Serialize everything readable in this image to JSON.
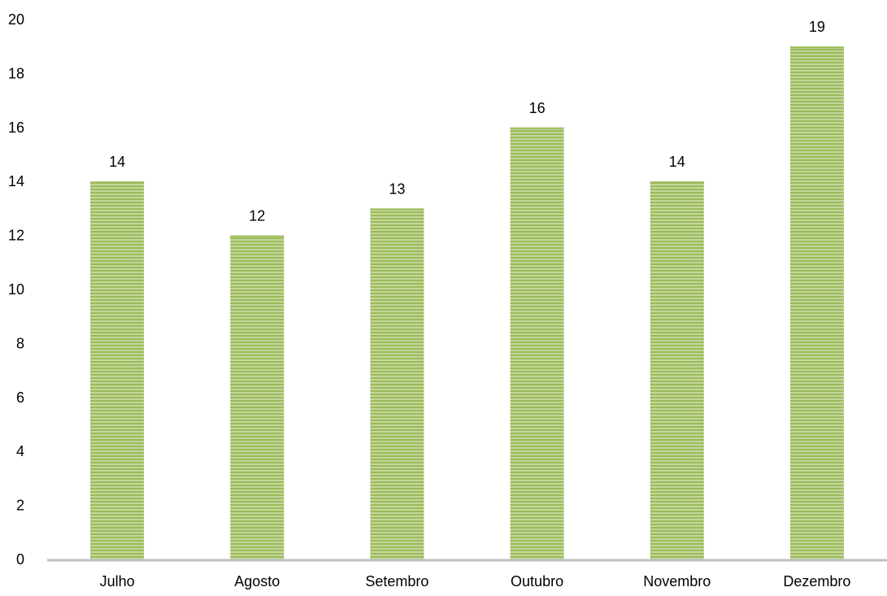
{
  "chart_data": {
    "type": "bar",
    "categories": [
      "Julho",
      "Agosto",
      "Setembro",
      "Outubro",
      "Novembro",
      "Dezembro"
    ],
    "values": [
      14,
      12,
      13,
      16,
      14,
      19
    ],
    "data_labels": [
      "14",
      "12",
      "13",
      "16",
      "14",
      "19"
    ],
    "y_ticks": [
      "0",
      "2",
      "4",
      "6",
      "8",
      "10",
      "12",
      "14",
      "16",
      "18",
      "20"
    ],
    "ylim": [
      0,
      20
    ],
    "title": "",
    "xlabel": "",
    "ylabel": "",
    "grid": false,
    "legend": "none",
    "bar_color": "#9BBB59",
    "bar_stripe_color": "#C3D69B",
    "axis_color": "#BFBFBF"
  }
}
